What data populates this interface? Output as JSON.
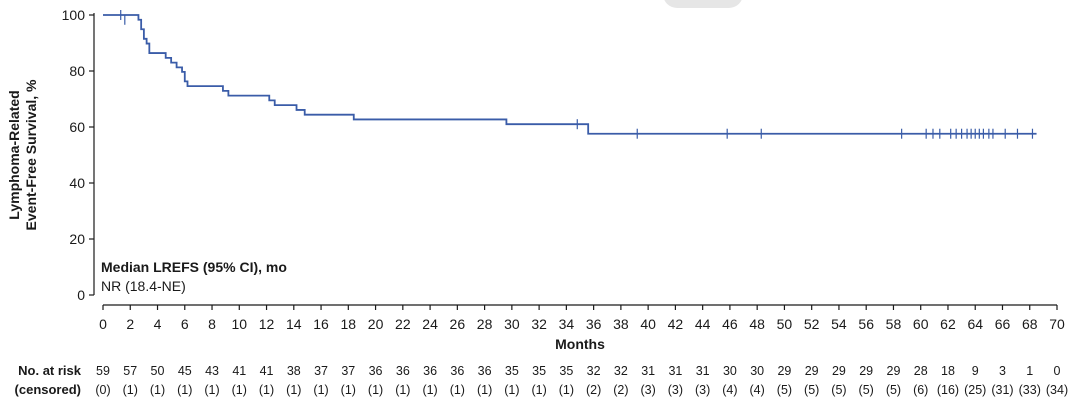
{
  "chart_data": {
    "type": "line",
    "ylabel": [
      "Lymphoma-Related",
      "Event-Free Survival, %"
    ],
    "xlabel": "Months",
    "xlim": [
      0,
      70
    ],
    "ylim": [
      0,
      100
    ],
    "x_ticks": [
      0,
      2,
      4,
      6,
      8,
      10,
      12,
      14,
      16,
      18,
      20,
      22,
      24,
      26,
      28,
      30,
      32,
      34,
      36,
      38,
      40,
      42,
      44,
      46,
      48,
      50,
      52,
      54,
      56,
      58,
      60,
      62,
      64,
      66,
      68,
      70
    ],
    "y_ticks": [
      0,
      20,
      40,
      60,
      80,
      100
    ],
    "grid": false,
    "series": [
      {
        "color": "#3a5ca8",
        "steps": [
          [
            0,
            100
          ],
          [
            2.6,
            98.3
          ],
          [
            2.8,
            94.9
          ],
          [
            3.0,
            91.5
          ],
          [
            3.2,
            89.8
          ],
          [
            3.4,
            86.4
          ],
          [
            4.6,
            84.7
          ],
          [
            5.0,
            83.0
          ],
          [
            5.4,
            81.3
          ],
          [
            5.8,
            79.7
          ],
          [
            6.0,
            76.3
          ],
          [
            6.2,
            74.6
          ],
          [
            8.8,
            72.9
          ],
          [
            9.2,
            71.2
          ],
          [
            12.2,
            69.5
          ],
          [
            12.6,
            67.8
          ],
          [
            14.2,
            66.1
          ],
          [
            14.8,
            64.4
          ],
          [
            18.4,
            62.7
          ],
          [
            29.6,
            61.0
          ],
          [
            35.6,
            57.6
          ],
          [
            68.5,
            57.6
          ]
        ],
        "censored": [
          [
            1.3,
            100
          ],
          [
            1.6,
            98.3
          ],
          [
            34.8,
            61.0
          ],
          [
            39.2,
            57.6
          ],
          [
            45.8,
            57.6
          ],
          [
            48.3,
            57.6
          ],
          [
            58.6,
            57.6
          ],
          [
            60.4,
            57.6
          ],
          [
            60.9,
            57.6
          ],
          [
            61.4,
            57.6
          ],
          [
            62.2,
            57.6
          ],
          [
            62.6,
            57.6
          ],
          [
            63.0,
            57.6
          ],
          [
            63.4,
            57.6
          ],
          [
            63.7,
            57.6
          ],
          [
            64.0,
            57.6
          ],
          [
            64.3,
            57.6
          ],
          [
            64.6,
            57.6
          ],
          [
            65.0,
            57.6
          ],
          [
            65.3,
            57.6
          ],
          [
            66.2,
            57.6
          ],
          [
            67.1,
            57.6
          ],
          [
            68.2,
            57.6
          ]
        ]
      }
    ],
    "annotation": {
      "title": "Median LREFS (95% CI), mo",
      "text": "NR (18.4-NE)"
    },
    "risk_table": {
      "label_line1": "No. at risk",
      "label_line2": "(censored)",
      "times": [
        0,
        2,
        4,
        6,
        8,
        10,
        12,
        14,
        16,
        18,
        20,
        22,
        24,
        26,
        28,
        30,
        32,
        34,
        36,
        38,
        40,
        42,
        44,
        46,
        48,
        50,
        52,
        54,
        56,
        58,
        60,
        62,
        64,
        66,
        68,
        70
      ],
      "at_risk": [
        "59",
        "57",
        "50",
        "45",
        "43",
        "41",
        "41",
        "38",
        "37",
        "37",
        "36",
        "36",
        "36",
        "36",
        "36",
        "35",
        "35",
        "35",
        "32",
        "32",
        "31",
        "31",
        "31",
        "30",
        "30",
        "29",
        "29",
        "29",
        "29",
        "29",
        "28",
        "18",
        "9",
        "3",
        "1",
        "0"
      ],
      "censored": [
        "(0)",
        "(1)",
        "(1)",
        "(1)",
        "(1)",
        "(1)",
        "(1)",
        "(1)",
        "(1)",
        "(1)",
        "(1)",
        "(1)",
        "(1)",
        "(1)",
        "(1)",
        "(1)",
        "(1)",
        "(1)",
        "(2)",
        "(2)",
        "(3)",
        "(3)",
        "(3)",
        "(4)",
        "(4)",
        "(5)",
        "(5)",
        "(5)",
        "(5)",
        "(5)",
        "(6)",
        "(16)",
        "(25)",
        "(31)",
        "(33)",
        "(34)"
      ]
    }
  }
}
